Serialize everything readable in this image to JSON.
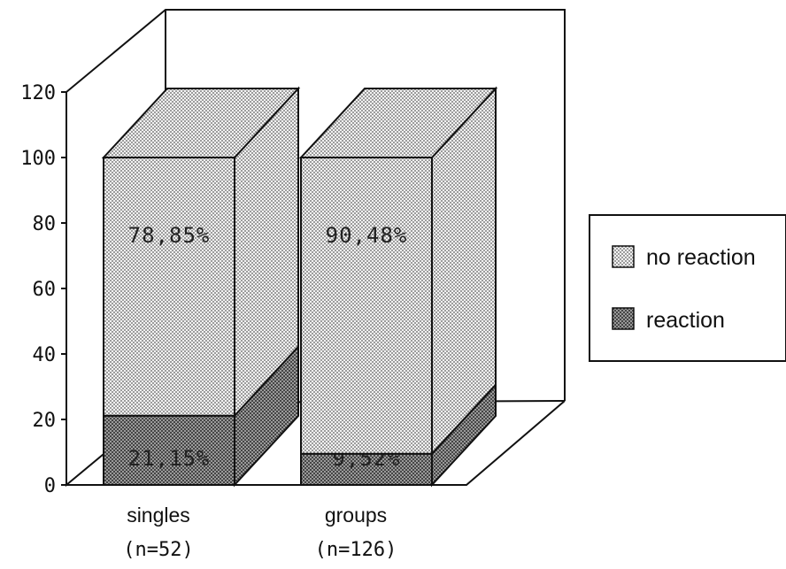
{
  "chart_data": {
    "type": "bar",
    "stacked": true,
    "three_d": true,
    "categories": [
      "singles",
      "groups"
    ],
    "category_counts": [
      "(n=52)",
      "(n=126)"
    ],
    "series": [
      {
        "name": "reaction",
        "values": [
          21.15,
          9.52
        ],
        "labels": [
          "21,15%",
          "9,52%"
        ]
      },
      {
        "name": "no reaction",
        "values": [
          78.85,
          90.48
        ],
        "labels": [
          "78,85%",
          "90,48%"
        ]
      }
    ],
    "ylim": [
      0,
      120
    ],
    "yticks": [
      "0",
      "20",
      "40",
      "60",
      "80",
      "100",
      "120"
    ],
    "legend_position": "right",
    "grid": false
  }
}
